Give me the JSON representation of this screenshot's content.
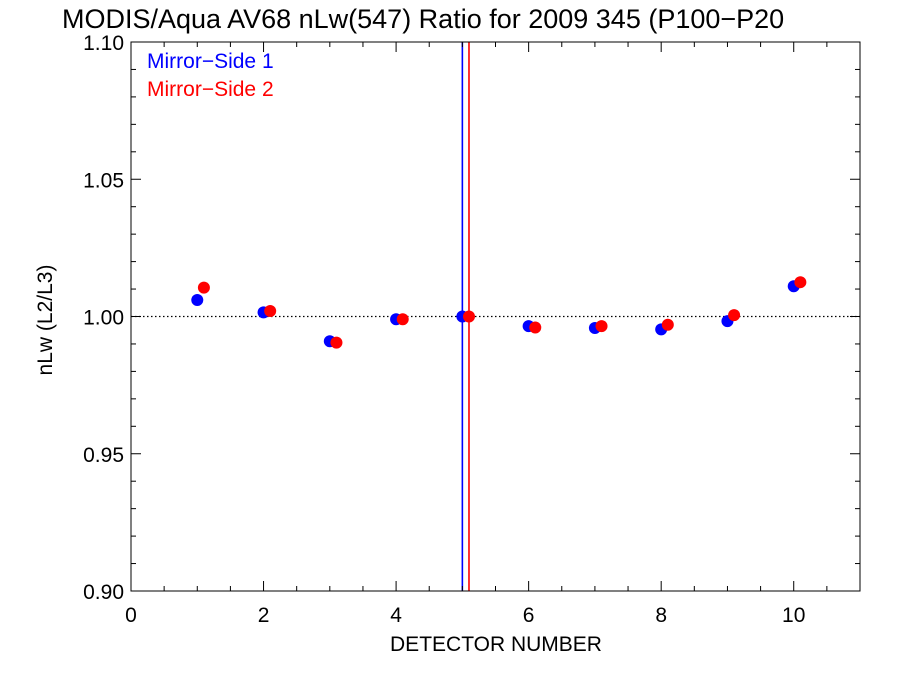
{
  "chart_data": {
    "type": "scatter",
    "title": "MODIS/Aqua AV68 nLw(547) Ratio for 2009 345 (P100−P20",
    "xlabel": "DETECTOR NUMBER",
    "ylabel": "nLw (L2/L3)",
    "xlim": [
      0,
      11
    ],
    "ylim": [
      0.9,
      1.1
    ],
    "x_ticks": [
      0,
      2,
      4,
      6,
      8,
      10
    ],
    "x_tick_labels": [
      "0",
      "2",
      "4",
      "6",
      "8",
      "10"
    ],
    "y_ticks": [
      0.9,
      0.95,
      1.0,
      1.05,
      1.1
    ],
    "y_tick_labels": [
      "0.90",
      "0.95",
      "1.00",
      "1.05",
      "1.10"
    ],
    "reference_line_y": 1.0,
    "vertical_lines": [
      {
        "x": 5.0,
        "color": "#0000ff"
      },
      {
        "x": 5.1,
        "color": "#ff0000"
      }
    ],
    "legend_placement": "top-left",
    "series": [
      {
        "name": "Mirror−Side 1",
        "color": "#0000ff",
        "x": [
          1,
          2,
          3,
          4,
          5,
          6,
          7,
          8,
          9,
          10
        ],
        "y": [
          1.006,
          1.0015,
          0.991,
          0.999,
          1.0,
          0.9965,
          0.9958,
          0.9953,
          0.9983,
          1.011
        ]
      },
      {
        "name": "Mirror−Side 2",
        "color": "#ff0000",
        "x": [
          1.1,
          2.1,
          3.1,
          4.1,
          5.1,
          6.1,
          7.1,
          8.1,
          9.1,
          10.1
        ],
        "y": [
          1.0105,
          1.002,
          0.9905,
          0.999,
          1.0,
          0.996,
          0.9965,
          0.997,
          1.0005,
          1.0125
        ]
      }
    ]
  }
}
